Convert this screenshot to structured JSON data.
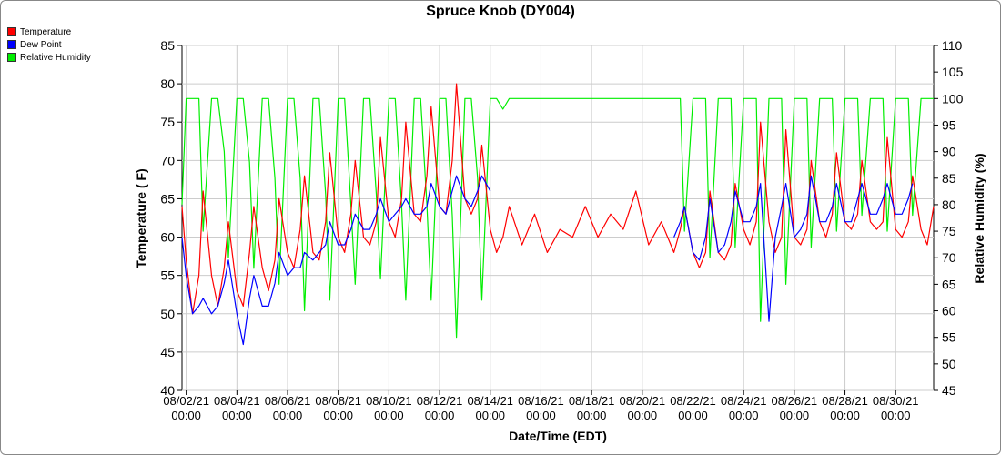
{
  "chart_data": {
    "type": "line",
    "title": "Spruce Knob (DY004)",
    "xlabel": "Date/Time (EDT)",
    "ylabel": "Temperature ( F)",
    "y2label": "Relative Humidity (%)",
    "ylim": [
      40,
      85
    ],
    "y2lim": [
      45,
      110
    ],
    "xlim": [
      "2021-08-01 20:00",
      "2021-08-31 12:00"
    ],
    "yticks": [
      "40",
      "45",
      "50",
      "55",
      "60",
      "65",
      "70",
      "75",
      "80",
      "85"
    ],
    "y2ticks": [
      "45",
      "50",
      "55",
      "60",
      "65",
      "70",
      "75",
      "80",
      "85",
      "90",
      "95",
      "100",
      "105",
      "110"
    ],
    "xticks": [
      {
        "date": "08/02/21",
        "time": "00:00"
      },
      {
        "date": "08/04/21",
        "time": "00:00"
      },
      {
        "date": "08/06/21",
        "time": "00:00"
      },
      {
        "date": "08/08/21",
        "time": "00:00"
      },
      {
        "date": "08/10/21",
        "time": "00:00"
      },
      {
        "date": "08/12/21",
        "time": "00:00"
      },
      {
        "date": "08/14/21",
        "time": "00:00"
      },
      {
        "date": "08/16/21",
        "time": "00:00"
      },
      {
        "date": "08/18/21",
        "time": "00:00"
      },
      {
        "date": "08/20/21",
        "time": "00:00"
      },
      {
        "date": "08/22/21",
        "time": "00:00"
      },
      {
        "date": "08/24/21",
        "time": "00:00"
      },
      {
        "date": "08/26/21",
        "time": "00:00"
      },
      {
        "date": "08/28/21",
        "time": "00:00"
      },
      {
        "date": "08/30/21",
        "time": "00:00"
      }
    ],
    "grid": true,
    "legend_position": "top-left",
    "series": [
      {
        "name": "Temperature",
        "color": "#ff0000",
        "axis": "left",
        "x": [
          "08/01 20:00",
          "08/02 00:00",
          "08/02 06:00",
          "08/02 12:00",
          "08/02 16:00",
          "08/03 00:00",
          "08/03 06:00",
          "08/03 12:00",
          "08/03 16:00",
          "08/04 00:00",
          "08/04 06:00",
          "08/04 12:00",
          "08/04 16:00",
          "08/05 00:00",
          "08/05 06:00",
          "08/05 12:00",
          "08/05 16:00",
          "08/06 00:00",
          "08/06 06:00",
          "08/06 12:00",
          "08/06 16:00",
          "08/07 00:00",
          "08/07 06:00",
          "08/07 12:00",
          "08/07 16:00",
          "08/08 00:00",
          "08/08 06:00",
          "08/08 12:00",
          "08/08 16:00",
          "08/09 00:00",
          "08/09 06:00",
          "08/09 12:00",
          "08/09 16:00",
          "08/10 00:00",
          "08/10 06:00",
          "08/10 12:00",
          "08/10 16:00",
          "08/11 00:00",
          "08/11 06:00",
          "08/11 12:00",
          "08/11 16:00",
          "08/12 00:00",
          "08/12 06:00",
          "08/12 12:00",
          "08/12 16:00",
          "08/13 00:00",
          "08/13 06:00",
          "08/13 12:00",
          "08/13 16:00",
          "08/14 00:00",
          "08/14 06:00",
          "08/14 12:00",
          "08/14 18:00",
          "08/15 06:00",
          "08/15 18:00",
          "08/16 06:00",
          "08/16 18:00",
          "08/17 06:00",
          "08/17 18:00",
          "08/18 06:00",
          "08/18 18:00",
          "08/19 06:00",
          "08/19 18:00",
          "08/20 06:00",
          "08/20 18:00",
          "08/21 06:00",
          "08/21 12:00",
          "08/21 16:00",
          "08/22 00:00",
          "08/22 06:00",
          "08/22 12:00",
          "08/22 16:00",
          "08/23 00:00",
          "08/23 06:00",
          "08/23 12:00",
          "08/23 16:00",
          "08/24 00:00",
          "08/24 06:00",
          "08/24 12:00",
          "08/24 16:00",
          "08/25 00:00",
          "08/25 06:00",
          "08/25 12:00",
          "08/25 16:00",
          "08/26 00:00",
          "08/26 06:00",
          "08/26 12:00",
          "08/26 16:00",
          "08/27 00:00",
          "08/27 06:00",
          "08/27 12:00",
          "08/27 16:00",
          "08/28 00:00",
          "08/28 06:00",
          "08/28 12:00",
          "08/28 16:00",
          "08/29 00:00",
          "08/29 06:00",
          "08/29 12:00",
          "08/29 16:00",
          "08/30 00:00",
          "08/30 06:00",
          "08/30 12:00",
          "08/30 16:00",
          "08/31 00:00",
          "08/31 06:00",
          "08/31 12:00"
        ],
        "values": [
          64,
          57,
          50,
          55,
          66,
          55,
          51,
          56,
          62,
          53,
          51,
          58,
          64,
          56,
          53,
          57,
          65,
          58,
          56,
          61,
          68,
          58,
          57,
          62,
          71,
          60,
          58,
          63,
          70,
          60,
          59,
          62,
          73,
          62,
          60,
          65,
          75,
          63,
          62,
          68,
          77,
          64,
          63,
          70,
          80,
          65,
          63,
          65,
          72,
          61,
          58,
          60,
          64,
          59,
          63,
          58,
          61,
          60,
          64,
          60,
          63,
          61,
          66,
          59,
          62,
          58,
          61,
          64,
          58,
          56,
          58,
          66,
          58,
          57,
          59,
          67,
          61,
          59,
          62,
          75,
          62,
          58,
          60,
          74,
          60,
          59,
          61,
          70,
          62,
          60,
          63,
          71,
          62,
          61,
          63,
          70,
          62,
          61,
          62,
          73,
          61,
          60,
          62,
          68,
          61,
          59,
          64
        ]
      },
      {
        "name": "Dew Point",
        "color": "#0000ff",
        "axis": "left",
        "x": [
          "08/01 20:00",
          "08/02 00:00",
          "08/02 06:00",
          "08/02 12:00",
          "08/02 16:00",
          "08/03 00:00",
          "08/03 06:00",
          "08/03 12:00",
          "08/03 16:00",
          "08/04 00:00",
          "08/04 06:00",
          "08/04 12:00",
          "08/04 16:00",
          "08/05 00:00",
          "08/05 06:00",
          "08/05 12:00",
          "08/05 16:00",
          "08/06 00:00",
          "08/06 06:00",
          "08/06 12:00",
          "08/06 16:00",
          "08/07 00:00",
          "08/07 06:00",
          "08/07 12:00",
          "08/07 16:00",
          "08/08 00:00",
          "08/08 06:00",
          "08/08 12:00",
          "08/08 16:00",
          "08/09 00:00",
          "08/09 06:00",
          "08/09 12:00",
          "08/09 16:00",
          "08/10 00:00",
          "08/10 06:00",
          "08/10 12:00",
          "08/10 16:00",
          "08/11 00:00",
          "08/11 06:00",
          "08/11 12:00",
          "08/11 16:00",
          "08/12 00:00",
          "08/12 06:00",
          "08/12 12:00",
          "08/12 16:00",
          "08/13 00:00",
          "08/13 06:00",
          "08/13 12:00",
          "08/13 16:00",
          "08/14 00:00",
          "08/21 06:00",
          "08/21 12:00",
          "08/21 16:00",
          "08/22 00:00",
          "08/22 06:00",
          "08/22 12:00",
          "08/22 16:00",
          "08/23 00:00",
          "08/23 06:00",
          "08/23 12:00",
          "08/23 16:00",
          "08/24 00:00",
          "08/24 06:00",
          "08/24 12:00",
          "08/24 16:00",
          "08/25 00:00",
          "08/25 06:00",
          "08/25 12:00",
          "08/25 16:00",
          "08/26 00:00",
          "08/26 06:00",
          "08/26 12:00",
          "08/26 16:00",
          "08/27 00:00",
          "08/27 06:00",
          "08/27 12:00",
          "08/27 16:00",
          "08/28 00:00",
          "08/28 06:00",
          "08/28 12:00",
          "08/28 16:00",
          "08/29 00:00",
          "08/29 06:00",
          "08/29 12:00",
          "08/29 16:00",
          "08/30 00:00",
          "08/30 06:00",
          "08/30 12:00",
          "08/30 16:00"
        ],
        "values": [
          60,
          55,
          50,
          51,
          52,
          50,
          51,
          54,
          57,
          50,
          46,
          52,
          55,
          51,
          51,
          54,
          58,
          55,
          56,
          56,
          58,
          57,
          58,
          59,
          62,
          59,
          59,
          61,
          63,
          61,
          61,
          63,
          65,
          62,
          63,
          64,
          65,
          63,
          63,
          64,
          67,
          64,
          63,
          66,
          68,
          65,
          64,
          66,
          68,
          66,
          60,
          62,
          64,
          58,
          57,
          60,
          65,
          58,
          59,
          62,
          66,
          62,
          62,
          64,
          67,
          49,
          60,
          64,
          67,
          60,
          61,
          63,
          68,
          62,
          62,
          64,
          67,
          62,
          62,
          65,
          67,
          63,
          63,
          65,
          67,
          63,
          63,
          65,
          67
        ]
      },
      {
        "name": "Relative Humidity",
        "color": "#00ee00",
        "axis": "right",
        "x": [
          "08/01 20:00",
          "08/02 00:00",
          "08/02 06:00",
          "08/02 12:00",
          "08/02 16:00",
          "08/03 00:00",
          "08/03 06:00",
          "08/03 12:00",
          "08/03 16:00",
          "08/04 00:00",
          "08/04 06:00",
          "08/04 12:00",
          "08/04 16:00",
          "08/05 00:00",
          "08/05 06:00",
          "08/05 12:00",
          "08/05 16:00",
          "08/06 00:00",
          "08/06 06:00",
          "08/06 12:00",
          "08/06 16:00",
          "08/07 00:00",
          "08/07 06:00",
          "08/07 12:00",
          "08/07 16:00",
          "08/08 00:00",
          "08/08 06:00",
          "08/08 12:00",
          "08/08 16:00",
          "08/09 00:00",
          "08/09 06:00",
          "08/09 12:00",
          "08/09 16:00",
          "08/10 00:00",
          "08/10 06:00",
          "08/10 12:00",
          "08/10 16:00",
          "08/11 00:00",
          "08/11 06:00",
          "08/11 12:00",
          "08/11 16:00",
          "08/12 00:00",
          "08/12 06:00",
          "08/12 12:00",
          "08/12 16:00",
          "08/13 00:00",
          "08/13 06:00",
          "08/13 12:00",
          "08/13 16:00",
          "08/14 00:00",
          "08/14 06:00",
          "08/14 12:00",
          "08/14 18:00",
          "08/15 12:00",
          "08/16 12:00",
          "08/17 12:00",
          "08/18 12:00",
          "08/19 12:00",
          "08/20 12:00",
          "08/21 06:00",
          "08/21 12:00",
          "08/21 16:00",
          "08/22 00:00",
          "08/22 06:00",
          "08/22 12:00",
          "08/22 16:00",
          "08/23 00:00",
          "08/23 06:00",
          "08/23 12:00",
          "08/23 16:00",
          "08/24 00:00",
          "08/24 06:00",
          "08/24 12:00",
          "08/24 16:00",
          "08/25 00:00",
          "08/25 06:00",
          "08/25 12:00",
          "08/25 16:00",
          "08/26 00:00",
          "08/26 06:00",
          "08/26 12:00",
          "08/26 16:00",
          "08/27 00:00",
          "08/27 06:00",
          "08/27 12:00",
          "08/27 16:00",
          "08/28 00:00",
          "08/28 06:00",
          "08/28 12:00",
          "08/28 16:00",
          "08/29 00:00",
          "08/29 06:00",
          "08/29 12:00",
          "08/29 16:00",
          "08/30 00:00",
          "08/30 06:00",
          "08/30 12:00",
          "08/30 16:00",
          "08/31 00:00",
          "08/31 06:00",
          "08/31 12:00"
        ],
        "values": [
          80,
          100,
          100,
          100,
          75,
          100,
          100,
          90,
          70,
          100,
          100,
          88,
          68,
          100,
          100,
          85,
          65,
          100,
          100,
          85,
          60,
          100,
          100,
          82,
          62,
          100,
          100,
          80,
          65,
          100,
          100,
          82,
          66,
          100,
          100,
          80,
          62,
          100,
          100,
          80,
          62,
          100,
          100,
          78,
          55,
          100,
          100,
          85,
          62,
          100,
          100,
          98,
          100,
          100,
          100,
          100,
          100,
          100,
          100,
          100,
          100,
          75,
          100,
          100,
          100,
          70,
          100,
          100,
          100,
          72,
          100,
          100,
          100,
          58,
          100,
          100,
          100,
          65,
          100,
          100,
          100,
          72,
          100,
          100,
          100,
          75,
          100,
          100,
          100,
          78,
          100,
          100,
          100,
          75,
          100,
          100,
          100,
          78,
          100,
          100,
          100
        ]
      }
    ]
  }
}
